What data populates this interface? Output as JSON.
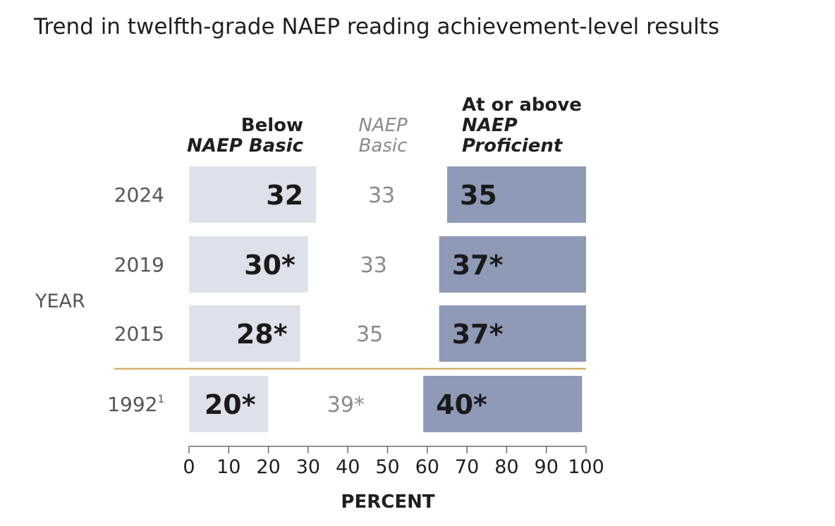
{
  "chart_data": {
    "type": "bar",
    "orientation": "horizontal",
    "stacked": true,
    "title": "Trend in twelfth-grade NAEP reading achievement-level results",
    "xlabel": "PERCENT",
    "ylabel": "YEAR",
    "xlim": [
      0,
      100
    ],
    "x_ticks": [
      0,
      10,
      20,
      30,
      40,
      50,
      60,
      70,
      80,
      90,
      100
    ],
    "categories": [
      "2024",
      "2019",
      "2015",
      "1992"
    ],
    "category_footnotes": [
      "",
      "",
      "",
      "1"
    ],
    "series": [
      {
        "name_lines": [
          "Below",
          "NAEP Basic"
        ],
        "color": "#dde1ea",
        "values": [
          32,
          30,
          28,
          20
        ],
        "labels": [
          "32",
          "30*",
          "28*",
          "20*"
        ]
      },
      {
        "name_lines": [
          "NAEP",
          "Basic"
        ],
        "color": "#ffffff",
        "values": [
          33,
          33,
          35,
          39
        ],
        "labels": [
          "33",
          "33",
          "35",
          "39*"
        ]
      },
      {
        "name_lines": [
          "At or above",
          "NAEP",
          "Proficient"
        ],
        "color": "#8e9ab6",
        "values": [
          35,
          37,
          37,
          40
        ],
        "labels": [
          "35",
          "37*",
          "37*",
          "40*"
        ]
      }
    ],
    "separator_color": "#d4b06a",
    "separator_after_index": 2
  }
}
